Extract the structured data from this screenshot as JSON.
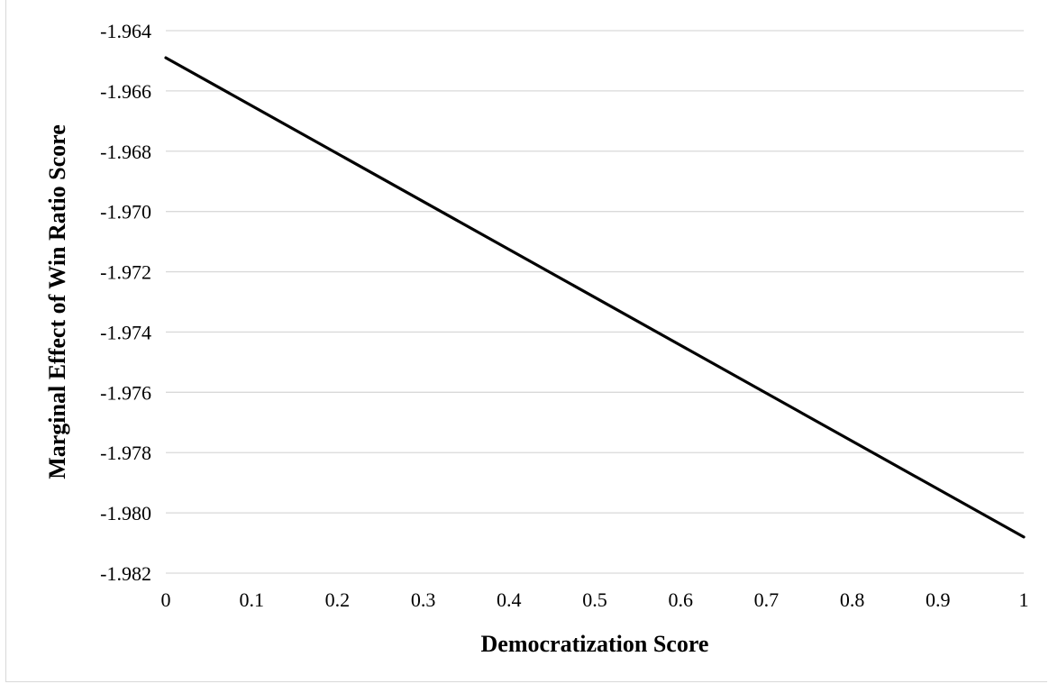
{
  "chart_data": {
    "type": "line",
    "title": "",
    "xlabel": "Democratization Score",
    "ylabel": "Marginal Effect of Win Ratio Score",
    "xlim": [
      0,
      1
    ],
    "ylim": [
      -1.982,
      -1.964
    ],
    "x_ticks": [
      "0",
      "0.1",
      "0.2",
      "0.3",
      "0.4",
      "0.5",
      "0.6",
      "0.7",
      "0.8",
      "0.9",
      "1"
    ],
    "y_ticks": [
      "-1.964",
      "-1.966",
      "-1.968",
      "-1.970",
      "-1.972",
      "-1.974",
      "-1.976",
      "-1.978",
      "-1.980",
      "-1.982"
    ],
    "grid": true,
    "legend": "none",
    "series": [
      {
        "x": [
          0,
          1
        ],
        "y": [
          -1.9649,
          -1.9808
        ]
      }
    ],
    "colors": {
      "line": "#000000",
      "grid": "#d9d9d9",
      "axis": "#d9d9d9"
    }
  }
}
